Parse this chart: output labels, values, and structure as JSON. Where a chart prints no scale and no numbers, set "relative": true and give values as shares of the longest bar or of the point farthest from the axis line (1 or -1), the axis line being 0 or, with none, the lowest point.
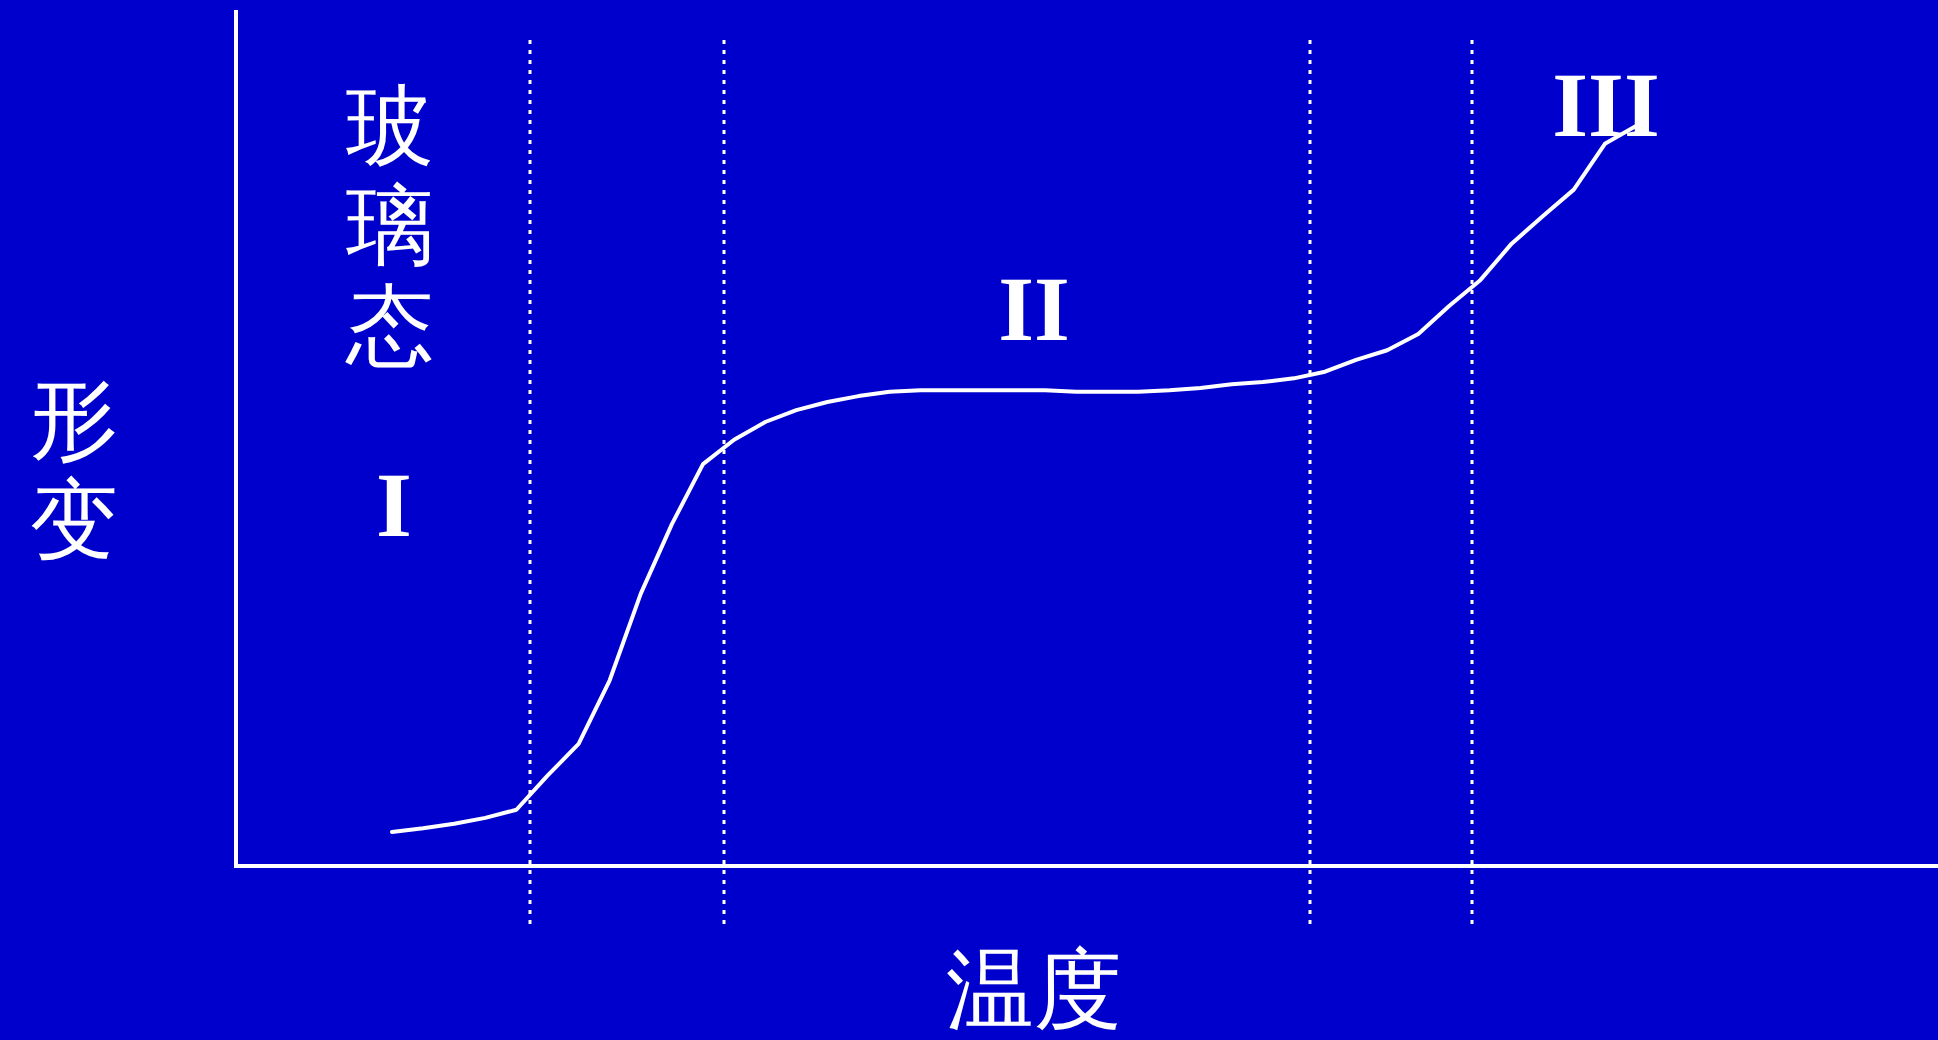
{
  "chart_data": {
    "type": "line",
    "relative": true,
    "xlabel": "温度",
    "ylabel": "形变",
    "categories": [
      null,
      null,
      null,
      null,
      null,
      null,
      null,
      null,
      null,
      null,
      null,
      null,
      null,
      null,
      null,
      null,
      null,
      null,
      null,
      null,
      null,
      null,
      null,
      null,
      null,
      null,
      null,
      null,
      null,
      null,
      null,
      null,
      null,
      null,
      null,
      null,
      null,
      null,
      null,
      null,
      null
    ],
    "series": [
      {
        "color": "#ffffff",
        "values": [
          0.046,
          0.051,
          0.057,
          0.065,
          0.076,
          0.122,
          0.165,
          0.251,
          0.368,
          0.462,
          0.543,
          0.576,
          0.6,
          0.616,
          0.627,
          0.635,
          0.641,
          0.643,
          0.643,
          0.643,
          0.643,
          0.643,
          0.641,
          0.641,
          0.641,
          0.643,
          0.646,
          0.651,
          0.654,
          0.659,
          0.668,
          0.684,
          0.697,
          0.719,
          0.757,
          0.792,
          0.841,
          0.878,
          0.914,
          0.976,
          1
        ]
      }
    ],
    "annotations": [
      "玻璃态",
      "I",
      "II",
      "III"
    ],
    "line_style": "solid",
    "marker": "none"
  }
}
